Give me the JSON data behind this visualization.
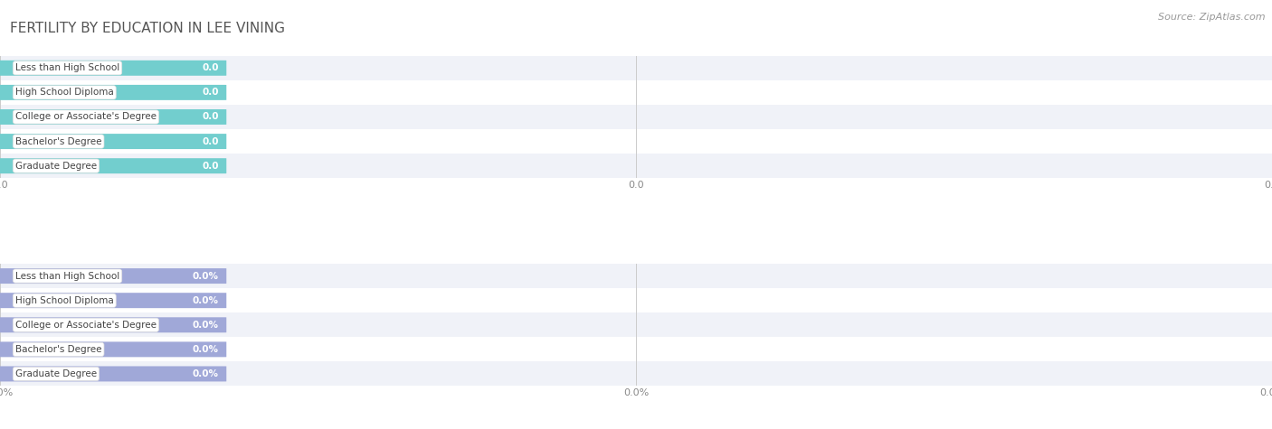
{
  "title": "FERTILITY BY EDUCATION IN LEE VINING",
  "source_text": "Source: ZipAtlas.com",
  "categories": [
    "Less than High School",
    "High School Diploma",
    "College or Associate's Degree",
    "Bachelor's Degree",
    "Graduate Degree"
  ],
  "values_top": [
    0.0,
    0.0,
    0.0,
    0.0,
    0.0
  ],
  "values_bottom": [
    0.0,
    0.0,
    0.0,
    0.0,
    0.0
  ],
  "bar_color_top": "#72cece",
  "bar_color_bottom": "#a0a8d8",
  "bg_color": "#ffffff",
  "row_bg_even": "#f0f2f8",
  "row_bg_odd": "#ffffff",
  "title_color": "#555555",
  "source_color": "#999999",
  "tick_color": "#888888",
  "label_text_color": "#555555",
  "value_text_color": "#ffffff",
  "grid_color": "#cccccc",
  "title_fontsize": 11,
  "source_fontsize": 8,
  "bar_label_fontsize": 7.5,
  "tick_fontsize": 8,
  "bar_height": 0.62,
  "xlim": [
    0,
    1
  ]
}
